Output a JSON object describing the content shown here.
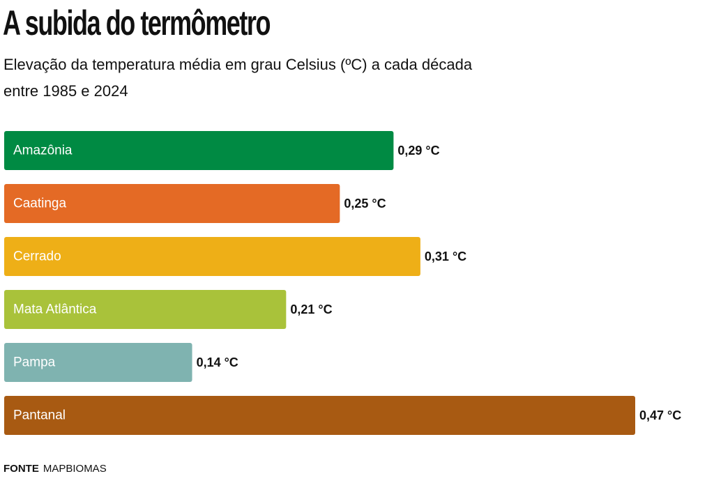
{
  "chart_data": {
    "type": "hbar",
    "title": "A subida do termômetro",
    "subtitle": "Elevação da temperatura média em grau Celsius (ºC) a cada década entre 1985 e 2024",
    "categories": [
      "Amazônia",
      "Caatinga",
      "Cerrado",
      "Mata Atlântica",
      "Pampa",
      "Pantanal"
    ],
    "values": [
      0.29,
      0.25,
      0.31,
      0.21,
      0.14,
      0.47
    ],
    "value_labels": [
      "0,29 °C",
      "0,25 °C",
      "0,31 °C",
      "0,21 °C",
      "0,14 °C",
      "0,47 °C"
    ],
    "colors": [
      "#008a43",
      "#e46a25",
      "#eeaf17",
      "#a9c23a",
      "#7fb3b0",
      "#a85a12"
    ],
    "source_label": "FONTE",
    "source": "MAPBIOMAS"
  }
}
